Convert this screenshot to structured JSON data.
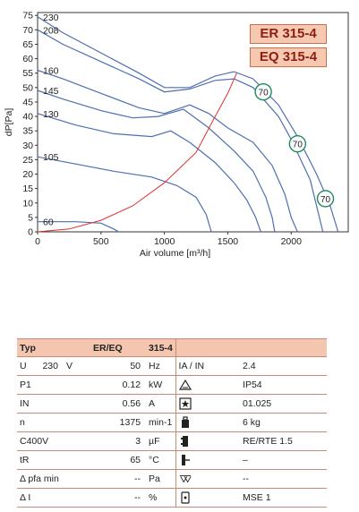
{
  "chart_data": {
    "type": "line",
    "models": [
      "ER 315-4",
      "EQ 315-4"
    ],
    "xlabel": "Air volume [m³/h]",
    "ylabel": "dP[Pa]",
    "xlim": [
      0,
      2450
    ],
    "ylim": [
      0,
      76
    ],
    "xticks": [
      0,
      500,
      1000,
      1500,
      2000
    ],
    "yticks": [
      0,
      5,
      10,
      15,
      20,
      25,
      30,
      35,
      40,
      45,
      50,
      55,
      60,
      65,
      70,
      75
    ],
    "grid": false,
    "colors": {
      "fan_curve": "#4e6fb0",
      "system_curve": "#e03030",
      "marker": "#1b8a5a"
    },
    "series": [
      {
        "name": "230",
        "points": [
          [
            0,
            74.5
          ],
          [
            200,
            69
          ],
          [
            500,
            62
          ],
          [
            800,
            55
          ],
          [
            1000,
            50
          ],
          [
            1200,
            50
          ],
          [
            1400,
            54
          ],
          [
            1550,
            55.5
          ],
          [
            1700,
            53
          ],
          [
            1900,
            44
          ],
          [
            2050,
            33
          ],
          [
            2200,
            20
          ],
          [
            2300,
            10
          ],
          [
            2370,
            0
          ]
        ]
      },
      {
        "name": "208",
        "points": [
          [
            0,
            70
          ],
          [
            200,
            65
          ],
          [
            500,
            59
          ],
          [
            800,
            53
          ],
          [
            1000,
            48.5
          ],
          [
            1200,
            49.5
          ],
          [
            1400,
            52.5
          ],
          [
            1550,
            53
          ],
          [
            1700,
            50
          ],
          [
            1900,
            40
          ],
          [
            2000,
            32
          ],
          [
            2150,
            18
          ],
          [
            2200,
            9
          ],
          [
            2250,
            0
          ]
        ]
      },
      {
        "name": "160",
        "points": [
          [
            0,
            56
          ],
          [
            200,
            53
          ],
          [
            500,
            48
          ],
          [
            800,
            43
          ],
          [
            1000,
            41
          ],
          [
            1200,
            44
          ],
          [
            1350,
            41
          ],
          [
            1500,
            36
          ],
          [
            1700,
            31
          ],
          [
            1850,
            23
          ],
          [
            1950,
            13
          ],
          [
            2000,
            5
          ],
          [
            2050,
            0
          ]
        ]
      },
      {
        "name": "145",
        "points": [
          [
            0,
            49
          ],
          [
            200,
            46
          ],
          [
            500,
            42
          ],
          [
            750,
            39.5
          ],
          [
            950,
            40
          ],
          [
            1150,
            42.5
          ],
          [
            1350,
            36
          ],
          [
            1550,
            28
          ],
          [
            1700,
            21
          ],
          [
            1800,
            12
          ],
          [
            1850,
            5
          ],
          [
            1870,
            0
          ]
        ]
      },
      {
        "name": "130",
        "points": [
          [
            0,
            41
          ],
          [
            300,
            37
          ],
          [
            600,
            34
          ],
          [
            900,
            33
          ],
          [
            1050,
            35
          ],
          [
            1200,
            31
          ],
          [
            1400,
            24
          ],
          [
            1550,
            17
          ],
          [
            1650,
            11
          ],
          [
            1720,
            5
          ],
          [
            1760,
            0
          ]
        ]
      },
      {
        "name": "105",
        "points": [
          [
            0,
            26
          ],
          [
            300,
            23.5
          ],
          [
            600,
            21
          ],
          [
            900,
            19
          ],
          [
            1100,
            16
          ],
          [
            1250,
            12
          ],
          [
            1330,
            6
          ],
          [
            1370,
            0
          ]
        ]
      },
      {
        "name": "60",
        "points": [
          [
            0,
            3.5
          ],
          [
            300,
            3.5
          ],
          [
            500,
            3
          ],
          [
            600,
            1
          ],
          [
            640,
            0
          ]
        ]
      }
    ],
    "system_curve": [
      [
        0,
        0
      ],
      [
        250,
        1
      ],
      [
        500,
        4
      ],
      [
        750,
        9
      ],
      [
        1000,
        17
      ],
      [
        1250,
        27.5
      ],
      [
        1400,
        40
      ],
      [
        1500,
        48
      ],
      [
        1570,
        55
      ]
    ],
    "markers": [
      {
        "label": "70",
        "x": 1780,
        "y": 48.5
      },
      {
        "label": "70",
        "x": 2050,
        "y": 30.5
      },
      {
        "label": "70",
        "x": 2270,
        "y": 11.5
      }
    ]
  },
  "table": {
    "header": {
      "typ": "Typ",
      "model": "ER/EQ",
      "number": "315-4"
    },
    "rows": [
      {
        "left_sym": "U",
        "left_val1": "230",
        "left_unit1": "V",
        "left_val": "50",
        "left_unit": "Hz",
        "right_icon": "",
        "right_label": "IA / IN",
        "right_val": "2.4"
      },
      {
        "left_sym": "P1",
        "left_val": "0.12",
        "left_unit": "kW",
        "right_icon": "protection-class-triangle-icon",
        "right_label": "",
        "right_val": "IP54"
      },
      {
        "left_sym": "IN",
        "left_val": "0.56",
        "left_unit": "A",
        "right_icon": "star-box-icon",
        "right_label": "",
        "right_val": "01.025"
      },
      {
        "left_sym": "n",
        "left_val": "1375",
        "left_unit": "min-1",
        "right_icon": "weight-icon",
        "right_label": "",
        "right_val": "6 kg"
      },
      {
        "left_sym": "C400V",
        "left_val": "3",
        "left_unit": "µF",
        "right_icon": "terminal-block-icon",
        "right_label": "",
        "right_val": "RE/RTE 1.5"
      },
      {
        "left_sym": "tR",
        "left_val": "65",
        "left_unit": "°C",
        "right_icon": "thermal-contact-icon",
        "right_label": "",
        "right_val": "–"
      },
      {
        "left_sym": "Δ pfa min",
        "left_val": "--",
        "left_unit": "Pa",
        "right_icon": "pressure-switch-icon",
        "right_label": "",
        "right_val": "--"
      },
      {
        "left_sym": "Δ I",
        "left_val": "--",
        "left_unit": "%",
        "right_icon": "switch-icon",
        "right_label": "",
        "right_val": "MSE 1"
      }
    ]
  }
}
